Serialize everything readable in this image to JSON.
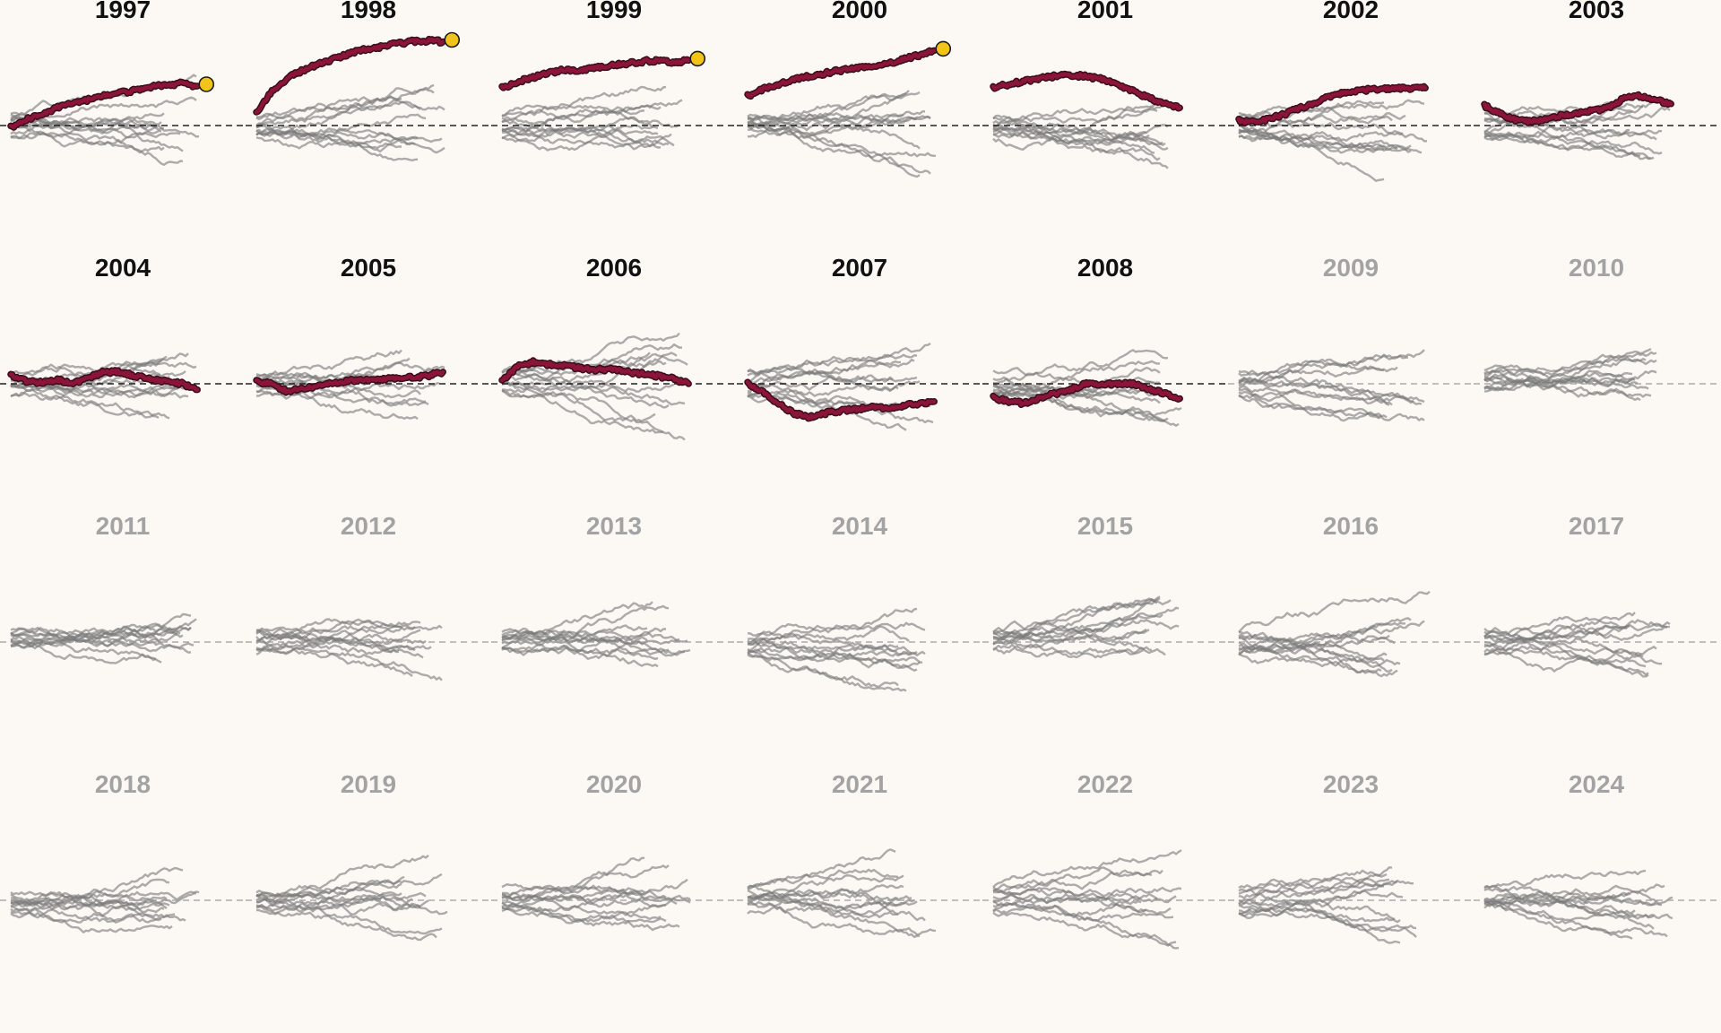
{
  "chart_data": {
    "type": "line",
    "description_free": true,
    "facet_by": "year",
    "ylim": [
      -1,
      1
    ],
    "baseline": 0,
    "colors": {
      "background": "#fcf9f5",
      "highlight": "#8b1538",
      "highlight_outline": "#3a0d1a",
      "marker": "#f2c318",
      "other_series": "#7a7a7a",
      "baseline_active": "#222222",
      "baseline_inactive": "#9a9a9a",
      "title_active": "#111111",
      "title_inactive": "#a3a3a3"
    },
    "panels": [
      {
        "year": "1997",
        "active": true,
        "highlight": [
          -0.02,
          0.06,
          0.12,
          0.18,
          0.22,
          0.26,
          0.3,
          0.33,
          0.36,
          0.39,
          0.41,
          0.43,
          0.4
        ],
        "marker": true
      },
      {
        "year": "1998",
        "active": true,
        "highlight": [
          0.12,
          0.35,
          0.48,
          0.56,
          0.62,
          0.68,
          0.73,
          0.77,
          0.8,
          0.83,
          0.85,
          0.86,
          0.85
        ],
        "marker": true
      },
      {
        "year": "1999",
        "active": true,
        "highlight": [
          0.38,
          0.44,
          0.49,
          0.53,
          0.57,
          0.55,
          0.59,
          0.61,
          0.63,
          0.65,
          0.66,
          0.64,
          0.66
        ],
        "marker": true
      },
      {
        "year": "2000",
        "active": true,
        "highlight": [
          0.3,
          0.37,
          0.42,
          0.47,
          0.5,
          0.53,
          0.56,
          0.58,
          0.6,
          0.63,
          0.67,
          0.71,
          0.76
        ],
        "marker": true
      },
      {
        "year": "2001",
        "active": true,
        "highlight": [
          0.38,
          0.42,
          0.45,
          0.48,
          0.5,
          0.51,
          0.5,
          0.47,
          0.42,
          0.35,
          0.28,
          0.22,
          0.18
        ],
        "marker": false
      },
      {
        "year": "2002",
        "active": true,
        "highlight": [
          0.05,
          0.03,
          0.07,
          0.12,
          0.18,
          0.24,
          0.3,
          0.34,
          0.36,
          0.37,
          0.37,
          0.38,
          0.38
        ],
        "marker": false
      },
      {
        "year": "2003",
        "active": true,
        "highlight": [
          0.2,
          0.12,
          0.06,
          0.04,
          0.07,
          0.1,
          0.13,
          0.15,
          0.18,
          0.28,
          0.3,
          0.26,
          0.22
        ],
        "marker": false
      },
      {
        "year": "2004",
        "active": true,
        "highlight": [
          0.08,
          0.03,
          0.01,
          0.04,
          0.0,
          0.06,
          0.12,
          0.12,
          0.08,
          0.05,
          0.02,
          0.0,
          -0.06
        ],
        "marker": false
      },
      {
        "year": "2005",
        "active": true,
        "highlight": [
          0.02,
          0.0,
          -0.08,
          -0.04,
          -0.02,
          0.01,
          0.03,
          0.04,
          0.05,
          0.06,
          0.06,
          0.08,
          0.12
        ],
        "marker": false
      },
      {
        "year": "2006",
        "active": true,
        "highlight": [
          0.02,
          0.18,
          0.22,
          0.2,
          0.18,
          0.16,
          0.14,
          0.15,
          0.12,
          0.1,
          0.08,
          0.05,
          0.0
        ],
        "marker": false
      },
      {
        "year": "2007",
        "active": true,
        "highlight": [
          0.0,
          -0.08,
          -0.2,
          -0.3,
          -0.34,
          -0.3,
          -0.27,
          -0.26,
          -0.24,
          -0.25,
          -0.22,
          -0.2,
          -0.18
        ],
        "marker": false
      },
      {
        "year": "2008",
        "active": true,
        "highlight": [
          -0.14,
          -0.18,
          -0.2,
          -0.14,
          -0.1,
          -0.06,
          0.0,
          0.0,
          0.0,
          0.0,
          -0.05,
          -0.1,
          -0.15
        ],
        "marker": false
      },
      {
        "year": "2009",
        "active": false
      },
      {
        "year": "2010",
        "active": false
      },
      {
        "year": "2011",
        "active": false
      },
      {
        "year": "2012",
        "active": false
      },
      {
        "year": "2013",
        "active": false
      },
      {
        "year": "2014",
        "active": false
      },
      {
        "year": "2015",
        "active": false
      },
      {
        "year": "2016",
        "active": false
      },
      {
        "year": "2017",
        "active": false
      },
      {
        "year": "2018",
        "active": false
      },
      {
        "year": "2019",
        "active": false
      },
      {
        "year": "2020",
        "active": false
      },
      {
        "year": "2021",
        "active": false
      },
      {
        "year": "2022",
        "active": false
      },
      {
        "year": "2023",
        "active": false
      },
      {
        "year": "2024",
        "active": false
      }
    ]
  }
}
